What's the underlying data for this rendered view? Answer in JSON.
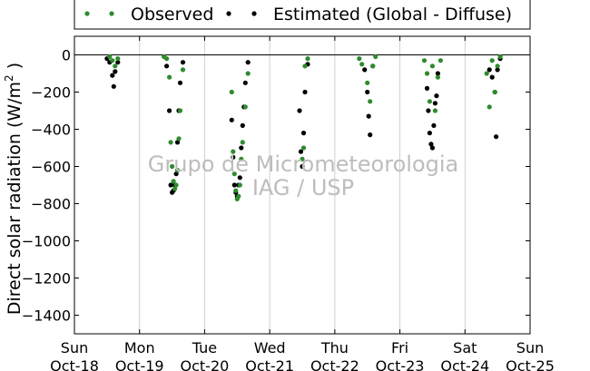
{
  "chart_data": {
    "type": "scatter",
    "title": "",
    "ylabel": "Direct solar radiation (W/m² )",
    "ylabel_main": "Direct solar radiation (W/m",
    "ylabel_sup": "2",
    "ylabel_tail": " )",
    "xlabel": "",
    "ylim": [
      -1500,
      100
    ],
    "yticks": [
      0,
      -200,
      -400,
      -600,
      -800,
      -1000,
      -1200,
      -1400
    ],
    "xlim": [
      "2015-10-18",
      "2015-10-25"
    ],
    "xticks": [
      {
        "day": "Sun",
        "date": "Oct-18"
      },
      {
        "day": "Mon",
        "date": "Oct-19"
      },
      {
        "day": "Tue",
        "date": "Oct-20"
      },
      {
        "day": "Wed",
        "date": "Oct-21"
      },
      {
        "day": "Thu",
        "date": "Oct-22"
      },
      {
        "day": "Fri",
        "date": "Oct-23"
      },
      {
        "day": "Sat",
        "date": "Oct-24"
      },
      {
        "day": "Sun",
        "date": "Oct-25"
      }
    ],
    "grid": "vertical",
    "legend_placement": "top, above plot",
    "zero_line": true,
    "watermark": [
      "Grupo de Micrometeorologia",
      "IAG / USP"
    ],
    "series": [
      {
        "name": "Observed",
        "color": "#2e8b2e",
        "points": [
          [
            "2015-10-18 13:00",
            -10
          ],
          [
            "2015-10-18 14:00",
            -30
          ],
          [
            "2015-10-18 15:00",
            -60
          ],
          [
            "2015-10-18 16:00",
            -20
          ],
          [
            "2015-10-19 09:00",
            -10
          ],
          [
            "2015-10-19 10:00",
            -20
          ],
          [
            "2015-10-19 11:00",
            -120
          ],
          [
            "2015-10-19 11:30",
            -470
          ],
          [
            "2015-10-19 12:00",
            -600
          ],
          [
            "2015-10-19 12:30",
            -680
          ],
          [
            "2015-10-19 13:00",
            -720
          ],
          [
            "2015-10-19 13:30",
            -700
          ],
          [
            "2015-10-19 14:00",
            -620
          ],
          [
            "2015-10-19 14:30",
            -450
          ],
          [
            "2015-10-19 15:00",
            -300
          ],
          [
            "2015-10-19 16:00",
            -80
          ],
          [
            "2015-10-20 10:00",
            -200
          ],
          [
            "2015-10-20 10:30",
            -520
          ],
          [
            "2015-10-20 11:00",
            -640
          ],
          [
            "2015-10-20 11:30",
            -730
          ],
          [
            "2015-10-20 12:00",
            -775
          ],
          [
            "2015-10-20 12:30",
            -760
          ],
          [
            "2015-10-20 13:00",
            -700
          ],
          [
            "2015-10-20 13:30",
            -560
          ],
          [
            "2015-10-20 14:00",
            -470
          ],
          [
            "2015-10-20 15:00",
            -280
          ],
          [
            "2015-10-20 16:00",
            -100
          ],
          [
            "2015-10-21 12:00",
            -560
          ],
          [
            "2015-10-21 12:30",
            -500
          ],
          [
            "2015-10-21 13:00",
            -60
          ],
          [
            "2015-10-21 14:00",
            -20
          ],
          [
            "2015-10-22 09:00",
            -20
          ],
          [
            "2015-10-22 10:00",
            -50
          ],
          [
            "2015-10-22 12:00",
            -150
          ],
          [
            "2015-10-22 13:00",
            -250
          ],
          [
            "2015-10-22 14:00",
            -60
          ],
          [
            "2015-10-22 15:00",
            -10
          ],
          [
            "2015-10-23 09:00",
            -30
          ],
          [
            "2015-10-23 10:00",
            -100
          ],
          [
            "2015-10-23 11:00",
            -250
          ],
          [
            "2015-10-23 12:00",
            -60
          ],
          [
            "2015-10-23 13:00",
            -300
          ],
          [
            "2015-10-23 14:00",
            -120
          ],
          [
            "2015-10-23 15:00",
            -30
          ],
          [
            "2015-10-24 08:00",
            -100
          ],
          [
            "2015-10-24 09:00",
            -280
          ],
          [
            "2015-10-24 10:00",
            -30
          ],
          [
            "2015-10-24 11:00",
            -200
          ],
          [
            "2015-10-24 12:00",
            -60
          ],
          [
            "2015-10-24 13:00",
            -10
          ]
        ]
      },
      {
        "name": "Estimated (Global - Diffuse)",
        "color": "#000000",
        "points": [
          [
            "2015-10-18 12:00",
            -20
          ],
          [
            "2015-10-18 13:00",
            -40
          ],
          [
            "2015-10-18 14:00",
            -110
          ],
          [
            "2015-10-18 14:30",
            -170
          ],
          [
            "2015-10-18 15:00",
            -90
          ],
          [
            "2015-10-18 16:00",
            -40
          ],
          [
            "2015-10-19 10:00",
            -60
          ],
          [
            "2015-10-19 11:00",
            -300
          ],
          [
            "2015-10-19 11:30",
            -700
          ],
          [
            "2015-10-19 12:00",
            -740
          ],
          [
            "2015-10-19 12:30",
            -730
          ],
          [
            "2015-10-19 13:00",
            -700
          ],
          [
            "2015-10-19 13:30",
            -640
          ],
          [
            "2015-10-19 14:00",
            -470
          ],
          [
            "2015-10-19 14:30",
            -300
          ],
          [
            "2015-10-19 15:00",
            -150
          ],
          [
            "2015-10-19 16:00",
            -40
          ],
          [
            "2015-10-20 10:00",
            -350
          ],
          [
            "2015-10-20 10:30",
            -550
          ],
          [
            "2015-10-20 11:00",
            -700
          ],
          [
            "2015-10-20 11:30",
            -740
          ],
          [
            "2015-10-20 12:00",
            -760
          ],
          [
            "2015-10-20 12:30",
            -700
          ],
          [
            "2015-10-20 13:00",
            -660
          ],
          [
            "2015-10-20 13:30",
            -500
          ],
          [
            "2015-10-20 14:00",
            -380
          ],
          [
            "2015-10-20 14:30",
            -280
          ],
          [
            "2015-10-20 15:00",
            -150
          ],
          [
            "2015-10-20 16:00",
            -40
          ],
          [
            "2015-10-21 11:00",
            -300
          ],
          [
            "2015-10-21 11:30",
            -520
          ],
          [
            "2015-10-21 12:00",
            -600
          ],
          [
            "2015-10-21 12:30",
            -420
          ],
          [
            "2015-10-21 13:00",
            -200
          ],
          [
            "2015-10-21 14:00",
            -50
          ],
          [
            "2015-10-22 11:00",
            -80
          ],
          [
            "2015-10-22 12:00",
            -200
          ],
          [
            "2015-10-22 12:30",
            -330
          ],
          [
            "2015-10-22 13:00",
            -430
          ],
          [
            "2015-10-22 14:00",
            -60
          ],
          [
            "2015-10-23 10:00",
            -180
          ],
          [
            "2015-10-23 10:30",
            -300
          ],
          [
            "2015-10-23 11:00",
            -420
          ],
          [
            "2015-10-23 11:30",
            -480
          ],
          [
            "2015-10-23 12:00",
            -500
          ],
          [
            "2015-10-23 12:30",
            -380
          ],
          [
            "2015-10-23 13:00",
            -260
          ],
          [
            "2015-10-23 13:30",
            -220
          ],
          [
            "2015-10-23 14:00",
            -100
          ],
          [
            "2015-10-24 09:00",
            -80
          ],
          [
            "2015-10-24 10:00",
            -120
          ],
          [
            "2015-10-24 11:00",
            -200
          ],
          [
            "2015-10-24 11:30",
            -440
          ],
          [
            "2015-10-24 12:00",
            -80
          ],
          [
            "2015-10-24 13:00",
            -20
          ]
        ]
      }
    ]
  }
}
